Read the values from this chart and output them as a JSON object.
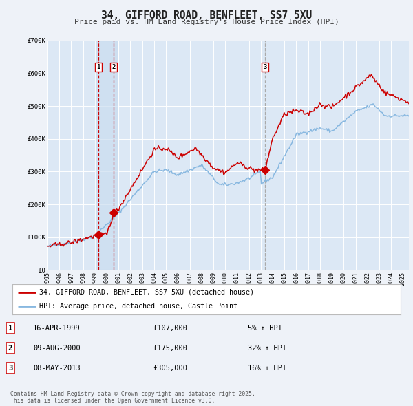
{
  "title": "34, GIFFORD ROAD, BENFLEET, SS7 5XU",
  "subtitle": "Price paid vs. HM Land Registry's House Price Index (HPI)",
  "background_color": "#eef2f8",
  "plot_bg_color": "#dce8f5",
  "grid_color": "#ffffff",
  "red_line_color": "#cc0000",
  "blue_line_color": "#88b8e0",
  "sale_marker_color": "#cc0000",
  "sale_dates_num": [
    1999.29,
    2000.6,
    2013.36
  ],
  "sale_prices": [
    107000,
    175000,
    305000
  ],
  "sale_labels": [
    "1",
    "2",
    "3"
  ],
  "vline1_x": 1999.29,
  "vline2_x": 2000.6,
  "vline3_x": 2013.36,
  "legend_red_label": "34, GIFFORD ROAD, BENFLEET, SS7 5XU (detached house)",
  "legend_blue_label": "HPI: Average price, detached house, Castle Point",
  "table_entries": [
    {
      "num": "1",
      "date": "16-APR-1999",
      "price": "£107,000",
      "change": "5% ↑ HPI"
    },
    {
      "num": "2",
      "date": "09-AUG-2000",
      "price": "£175,000",
      "change": "32% ↑ HPI"
    },
    {
      "num": "3",
      "date": "08-MAY-2013",
      "price": "£305,000",
      "change": "16% ↑ HPI"
    }
  ],
  "footer": "Contains HM Land Registry data © Crown copyright and database right 2025.\nThis data is licensed under the Open Government Licence v3.0.",
  "ylim": [
    0,
    700000
  ],
  "xlim_start": 1995.0,
  "xlim_end": 2025.5,
  "yticks": [
    0,
    100000,
    200000,
    300000,
    400000,
    500000,
    600000,
    700000
  ],
  "ytick_labels": [
    "£0",
    "£100K",
    "£200K",
    "£300K",
    "£400K",
    "£500K",
    "£600K",
    "£700K"
  ],
  "xticks": [
    1995,
    1996,
    1997,
    1998,
    1999,
    2000,
    2001,
    2002,
    2003,
    2004,
    2005,
    2006,
    2007,
    2008,
    2009,
    2010,
    2011,
    2012,
    2013,
    2014,
    2015,
    2016,
    2017,
    2018,
    2019,
    2020,
    2021,
    2022,
    2023,
    2024,
    2025
  ]
}
